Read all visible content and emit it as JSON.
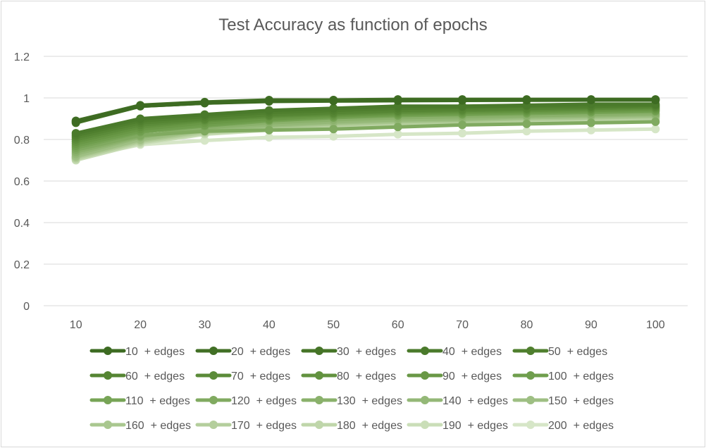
{
  "chart_data": {
    "type": "line",
    "title": "Test Accuracy as function of epochs",
    "xlabel": "",
    "ylabel": "",
    "x": [
      10,
      20,
      30,
      40,
      50,
      60,
      70,
      80,
      90,
      100
    ],
    "x_tick_labels": [
      "10",
      "20",
      "30",
      "40",
      "50",
      "60",
      "70",
      "80",
      "90",
      "100"
    ],
    "y_tick_labels": [
      "0",
      "0.2",
      "0.4",
      "0.6",
      "0.8",
      "1",
      "1.2"
    ],
    "ylim": [
      0,
      1.2
    ],
    "grid": "horizontal",
    "legend_position": "bottom",
    "series": [
      {
        "name": "10  + edges",
        "color": "#3d6b22",
        "values": [
          0.885,
          0.96,
          0.975,
          0.983,
          0.985,
          0.987,
          0.988,
          0.989,
          0.99,
          0.99
        ]
      },
      {
        "name": "20  + edges",
        "color": "#416f25",
        "values": [
          0.89,
          0.965,
          0.98,
          0.99,
          0.99,
          0.993,
          0.993,
          0.993,
          0.993,
          0.993
        ]
      },
      {
        "name": "30  + edges",
        "color": "#457427",
        "values": [
          0.88,
          0.96,
          0.975,
          0.985,
          0.99,
          0.99,
          0.99,
          0.99,
          0.99,
          0.99
        ]
      },
      {
        "name": "40  + edges",
        "color": "#4a7a2b",
        "values": [
          0.83,
          0.9,
          0.92,
          0.94,
          0.95,
          0.96,
          0.96,
          0.965,
          0.97,
          0.97
        ]
      },
      {
        "name": "50  + edges",
        "color": "#4f7f2e",
        "values": [
          0.82,
          0.89,
          0.91,
          0.93,
          0.94,
          0.95,
          0.955,
          0.96,
          0.96,
          0.965
        ]
      },
      {
        "name": "60  + edges",
        "color": "#558533",
        "values": [
          0.81,
          0.88,
          0.9,
          0.92,
          0.93,
          0.94,
          0.945,
          0.95,
          0.955,
          0.96
        ]
      },
      {
        "name": "70  + edges",
        "color": "#5b8b39",
        "values": [
          0.8,
          0.87,
          0.895,
          0.915,
          0.925,
          0.935,
          0.94,
          0.945,
          0.95,
          0.955
        ]
      },
      {
        "name": "80  + edges",
        "color": "#62923f",
        "values": [
          0.79,
          0.86,
          0.89,
          0.91,
          0.92,
          0.93,
          0.935,
          0.94,
          0.945,
          0.95
        ]
      },
      {
        "name": "90  + edges",
        "color": "#699846",
        "values": [
          0.78,
          0.85,
          0.88,
          0.9,
          0.915,
          0.925,
          0.93,
          0.935,
          0.94,
          0.945
        ]
      },
      {
        "name": "100  + edges",
        "color": "#6f9e4d",
        "values": [
          0.77,
          0.84,
          0.87,
          0.895,
          0.91,
          0.92,
          0.925,
          0.93,
          0.935,
          0.94
        ]
      },
      {
        "name": "110  + edges",
        "color": "#77a456",
        "values": [
          0.76,
          0.835,
          0.865,
          0.89,
          0.905,
          0.915,
          0.92,
          0.925,
          0.93,
          0.935
        ]
      },
      {
        "name": "120  + edges",
        "color": "#80aa60",
        "values": [
          0.75,
          0.82,
          0.84,
          0.845,
          0.85,
          0.86,
          0.87,
          0.875,
          0.88,
          0.885
        ]
      },
      {
        "name": "130  + edges",
        "color": "#8ab16b",
        "values": [
          0.74,
          0.815,
          0.855,
          0.88,
          0.895,
          0.905,
          0.91,
          0.915,
          0.92,
          0.925
        ]
      },
      {
        "name": "140  + edges",
        "color": "#94b877",
        "values": [
          0.73,
          0.81,
          0.85,
          0.87,
          0.885,
          0.895,
          0.9,
          0.91,
          0.915,
          0.92
        ]
      },
      {
        "name": "150  + edges",
        "color": "#9ebf83",
        "values": [
          0.72,
          0.8,
          0.845,
          0.865,
          0.88,
          0.89,
          0.895,
          0.905,
          0.91,
          0.915
        ]
      },
      {
        "name": "160  + edges",
        "color": "#a9c78f",
        "values": [
          0.715,
          0.795,
          0.84,
          0.86,
          0.875,
          0.885,
          0.89,
          0.9,
          0.905,
          0.91
        ]
      },
      {
        "name": "170  + edges",
        "color": "#b4ce9c",
        "values": [
          0.71,
          0.79,
          0.835,
          0.855,
          0.87,
          0.88,
          0.885,
          0.895,
          0.9,
          0.905
        ]
      },
      {
        "name": "180  + edges",
        "color": "#bfd6aa",
        "values": [
          0.705,
          0.785,
          0.83,
          0.85,
          0.865,
          0.875,
          0.88,
          0.89,
          0.895,
          0.9
        ]
      },
      {
        "name": "190  + edges",
        "color": "#cadeb8",
        "values": [
          0.7,
          0.78,
          0.825,
          0.845,
          0.86,
          0.87,
          0.875,
          0.885,
          0.89,
          0.895
        ]
      },
      {
        "name": "200  + edges",
        "color": "#d6e6c7",
        "values": [
          0.71,
          0.775,
          0.795,
          0.81,
          0.815,
          0.825,
          0.83,
          0.84,
          0.845,
          0.85
        ]
      }
    ]
  }
}
